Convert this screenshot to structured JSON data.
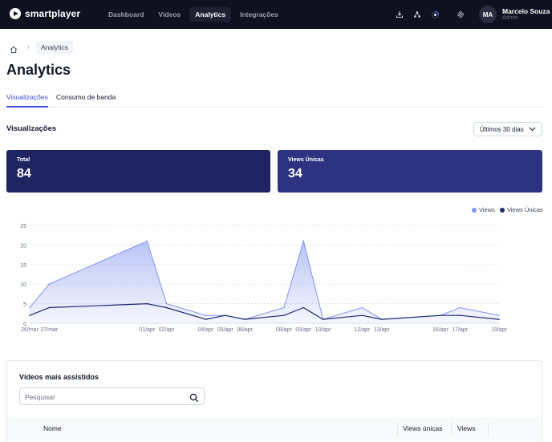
{
  "app": {
    "name": "smartplayer"
  },
  "nav": {
    "items": [
      {
        "label": "Dashboard",
        "active": false
      },
      {
        "label": "Vídeos",
        "active": false
      },
      {
        "label": "Analytics",
        "active": true
      },
      {
        "label": "Integrações",
        "active": false
      }
    ]
  },
  "top_icons": [
    "download-icon",
    "hierarchy-icon",
    "loading-icon",
    "gear-icon"
  ],
  "user": {
    "initials": "MA",
    "name": "Marcelo Souza",
    "role": "Admin"
  },
  "breadcrumb": {
    "current": "Analytics"
  },
  "page": {
    "title": "Analytics"
  },
  "tabs": [
    {
      "label": "Visualizações",
      "active": true
    },
    {
      "label": "Consumo de banda",
      "active": false
    }
  ],
  "section": {
    "title": "Visualizações",
    "range": "Últimos 30 dias"
  },
  "stats": {
    "total": {
      "label": "Total",
      "value": "84"
    },
    "unique": {
      "label": "Views Únicas",
      "value": "34"
    }
  },
  "colors": {
    "views": "#8094ef",
    "unique": "#1e2a6e",
    "nav_bg": "#0f1020",
    "accent": "#3b4fd8"
  },
  "chart_data": {
    "type": "area",
    "x": [
      "26/mar",
      "27/mar",
      "01/apr",
      "02/apr",
      "04/apr",
      "05/apr",
      "06/apr",
      "08/apr",
      "09/apr",
      "10/apr",
      "12/apr",
      "13/apr",
      "16/apr",
      "17/apr",
      "19/apr"
    ],
    "series": [
      {
        "name": "Views",
        "values": [
          4,
          10,
          21,
          5,
          2,
          2,
          1,
          4,
          21,
          1,
          4,
          1,
          2,
          4,
          2
        ]
      },
      {
        "name": "Views Únicas",
        "values": [
          2,
          4,
          5,
          4,
          1,
          2,
          1,
          2,
          4,
          1,
          2,
          1,
          2,
          2,
          1
        ]
      }
    ],
    "y_ticks": [
      "0",
      "5",
      "10",
      "15",
      "20",
      "25"
    ],
    "ylim": [
      0,
      25
    ],
    "legend_position": "top-right",
    "grid": true
  },
  "table": {
    "title": "Vídeos mais assistidos",
    "search_placeholder": "Pesquisar",
    "columns": [
      "Nome",
      "Views únicas",
      "Views"
    ]
  }
}
